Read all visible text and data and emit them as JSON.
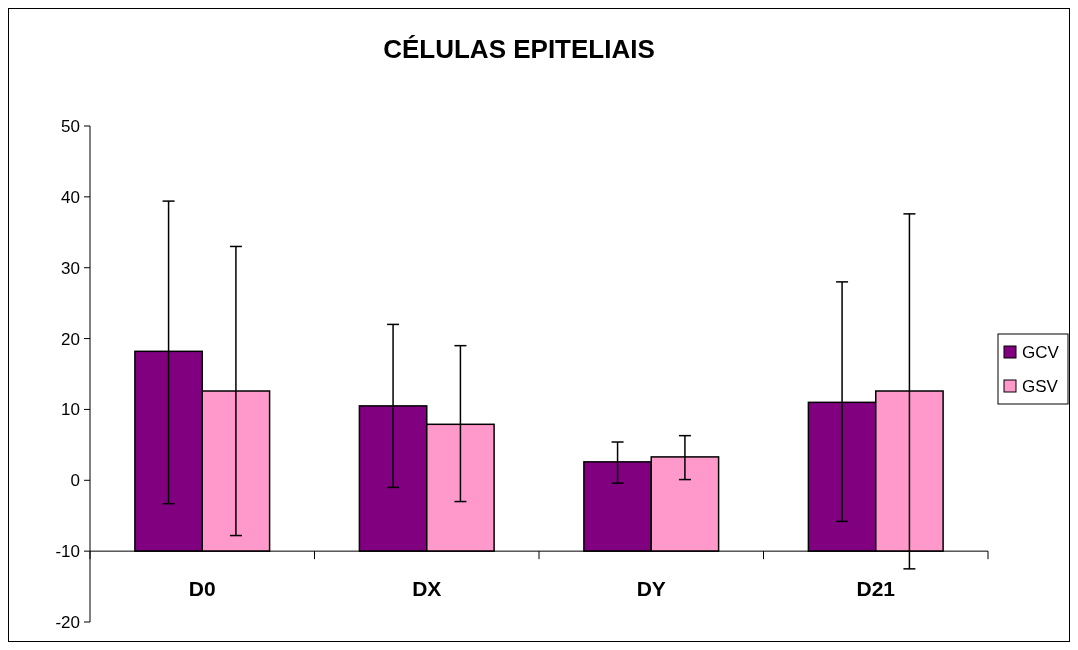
{
  "chart_data": {
    "type": "bar",
    "title": "CÉLULAS EPITELIAIS",
    "categories": [
      "D0",
      "DX",
      "DY",
      "D21"
    ],
    "series": [
      {
        "name": "GCV",
        "color": "#800080",
        "base": [
          -10,
          -10,
          -10,
          -10
        ],
        "values": [
          28.2,
          20.5,
          12.6,
          21.0
        ],
        "errors": [
          [
            -3.3,
            39.4
          ],
          [
            -1,
            22
          ],
          [
            -0.4,
            5.4
          ],
          [
            -5.8,
            28
          ]
        ]
      },
      {
        "name": "GSV",
        "color": "#ff99cc",
        "base": [
          -10,
          -10,
          -10,
          -10
        ],
        "values": [
          22.6,
          17.9,
          13.3,
          22.6
        ],
        "errors": [
          [
            -7.8,
            33
          ],
          [
            -3,
            19
          ],
          [
            0.1,
            6.3
          ],
          [
            -12.5,
            37.6
          ]
        ]
      }
    ],
    "ylim": [
      -20,
      50
    ],
    "yticks": [
      -20,
      -10,
      0,
      10,
      20,
      30,
      40,
      50
    ],
    "grid": false,
    "legend": "right"
  }
}
